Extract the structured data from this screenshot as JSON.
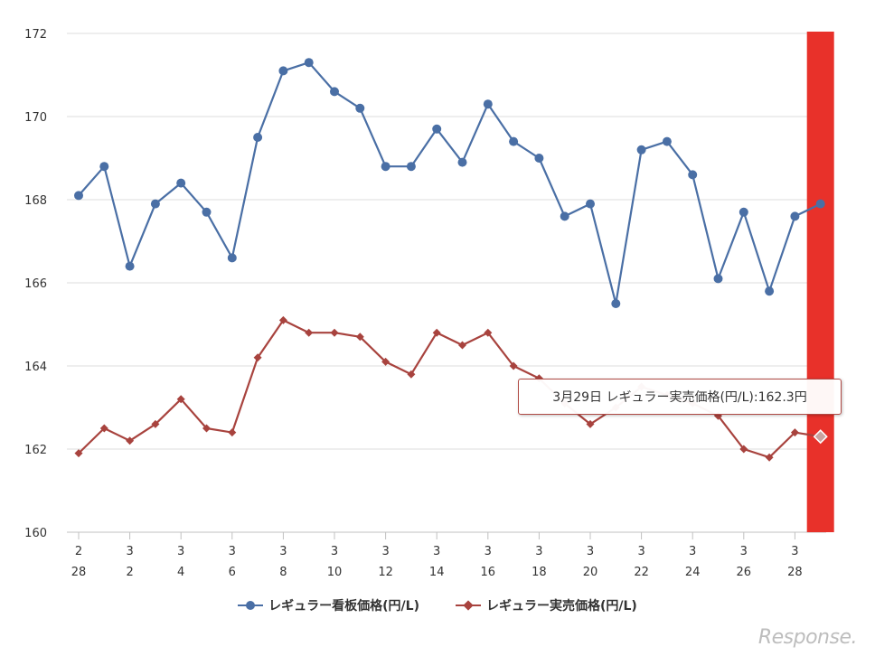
{
  "chart_data": {
    "type": "line",
    "y_ticks": [
      "160",
      "162",
      "164",
      "166",
      "168",
      "170",
      "172"
    ],
    "ylim": [
      160,
      172
    ],
    "x_tick_labels": [
      {
        "month": "2",
        "day": "28"
      },
      {
        "month": "3",
        "day": "2"
      },
      {
        "month": "3",
        "day": "4"
      },
      {
        "month": "3",
        "day": "6"
      },
      {
        "month": "3",
        "day": "8"
      },
      {
        "month": "3",
        "day": "10"
      },
      {
        "month": "3",
        "day": "12"
      },
      {
        "month": "3",
        "day": "14"
      },
      {
        "month": "3",
        "day": "16"
      },
      {
        "month": "3",
        "day": "18"
      },
      {
        "month": "3",
        "day": "20"
      },
      {
        "month": "3",
        "day": "22"
      },
      {
        "month": "3",
        "day": "24"
      },
      {
        "month": "3",
        "day": "26"
      },
      {
        "month": "3",
        "day": "28"
      }
    ],
    "x_dates": [
      "2/28",
      "3/1",
      "3/2",
      "3/3",
      "3/4",
      "3/5",
      "3/6",
      "3/7",
      "3/8",
      "3/9",
      "3/10",
      "3/11",
      "3/12",
      "3/13",
      "3/14",
      "3/15",
      "3/16",
      "3/17",
      "3/18",
      "3/19",
      "3/20",
      "3/21",
      "3/22",
      "3/23",
      "3/24",
      "3/25",
      "3/26",
      "3/27",
      "3/28",
      "3/29"
    ],
    "series": [
      {
        "name": "レギュラー看板価格(円/L)",
        "color": "#4a6fa5",
        "marker": "circle",
        "values": [
          168.1,
          168.8,
          166.4,
          167.9,
          168.4,
          167.7,
          166.6,
          169.5,
          171.1,
          171.3,
          170.6,
          170.2,
          168.8,
          168.8,
          169.7,
          168.9,
          170.3,
          169.4,
          169.0,
          167.6,
          167.9,
          165.5,
          169.2,
          169.4,
          168.6,
          166.1,
          167.7,
          165.8,
          167.6,
          167.9
        ]
      },
      {
        "name": "レギュラー実売価格(円/L)",
        "color": "#a8433e",
        "marker": "diamond",
        "values": [
          161.9,
          162.5,
          162.2,
          162.6,
          163.2,
          162.5,
          162.4,
          164.2,
          165.1,
          164.8,
          164.8,
          164.7,
          164.1,
          163.8,
          164.8,
          164.5,
          164.8,
          164.0,
          163.7,
          163.1,
          162.6,
          163.0,
          163.5,
          163.3,
          163.1,
          162.8,
          162.0,
          161.8,
          162.4,
          162.3
        ]
      }
    ],
    "highlight": {
      "color": "#e8312a",
      "index": 29
    },
    "tooltip": "3月29日 レギュラー実売価格(円/L):162.3円",
    "grid": true,
    "legend_position": "bottom"
  },
  "watermark": "Response."
}
